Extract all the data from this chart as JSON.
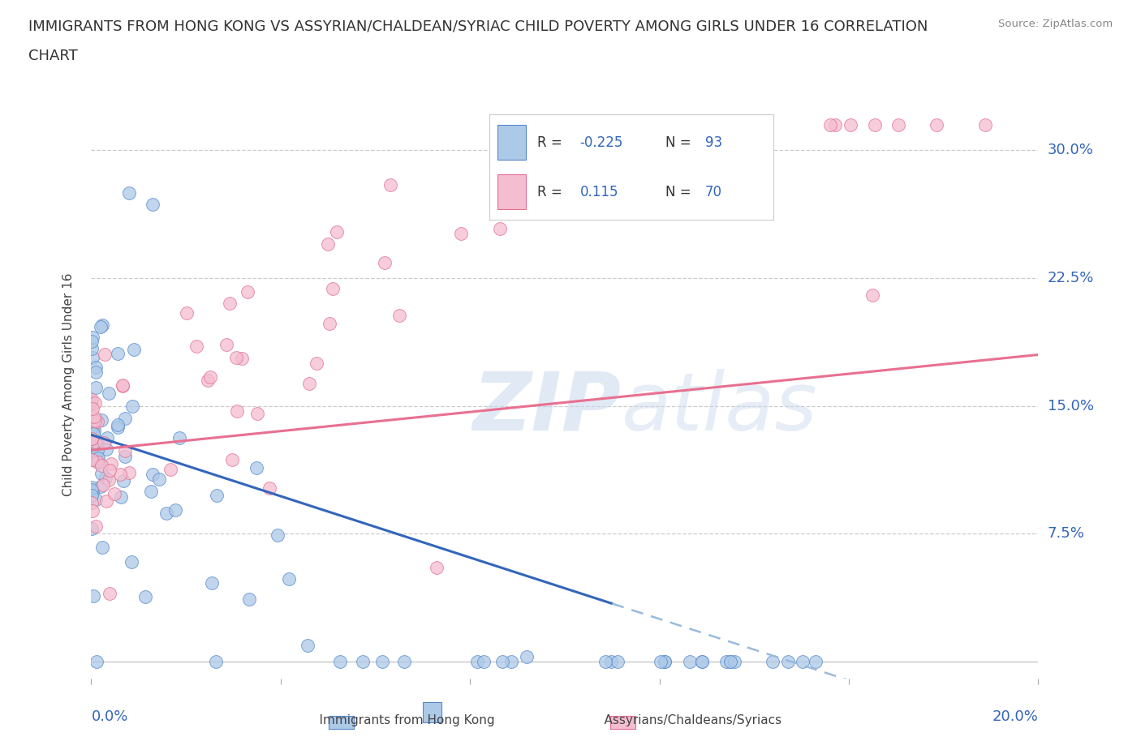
{
  "title_line1": "IMMIGRANTS FROM HONG KONG VS ASSYRIAN/CHALDEAN/SYRIAC CHILD POVERTY AMONG GIRLS UNDER 16 CORRELATION",
  "title_line2": "CHART",
  "source_text": "Source: ZipAtlas.com",
  "ylabel": "Child Poverty Among Girls Under 16",
  "ytick_labels": [
    "7.5%",
    "15.0%",
    "22.5%",
    "30.0%"
  ],
  "ytick_values": [
    0.075,
    0.15,
    0.225,
    0.3
  ],
  "xlim": [
    0.0,
    0.2
  ],
  "ylim": [
    -0.01,
    0.335
  ],
  "hk_color": "#adc9e8",
  "hk_edge": "#5588cc",
  "ac_color": "#f5bdd0",
  "ac_edge": "#e07090",
  "hk_line_color": "#3366bb",
  "hk_dash_color": "#99bbdd",
  "ac_line_color": "#e87090",
  "legend_label_hk": "Immigrants from Hong Kong",
  "legend_label_ac": "Assyrians/Chaldeans/Syriacs",
  "watermark_zip": "ZIP",
  "watermark_atlas": "atlas",
  "r_color": "#3366bb",
  "n_color": "#3366bb",
  "label_color": "#3366bb",
  "grid_color": "#cccccc",
  "title_fontsize": 13,
  "axis_label_fontsize": 11,
  "tick_label_fontsize": 13
}
